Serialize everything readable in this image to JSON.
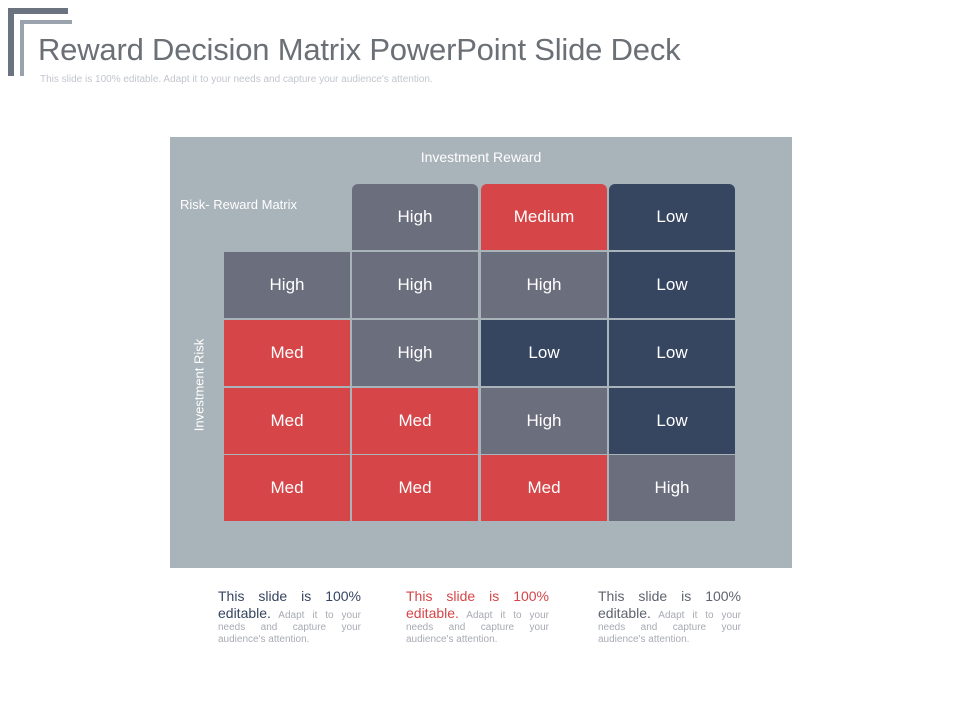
{
  "header": {
    "title": "Reward Decision Matrix PowerPoint Slide Deck",
    "subtitle": "This slide is 100% editable. Adapt it to your needs and capture your audience's attention."
  },
  "matrix": {
    "reward_label": "Investment  Reward",
    "matrix_label": "Risk- Reward Matrix",
    "risk_label": "Investment  Risk",
    "column_headers": [
      "High",
      "Medium",
      "Low"
    ],
    "rows": [
      {
        "header": "High",
        "cells": [
          "High",
          "High",
          "Low"
        ]
      },
      {
        "header": "Med",
        "cells": [
          "High",
          "Low",
          "Low"
        ]
      },
      {
        "header": "Med",
        "cells": [
          "Med",
          "High",
          "Low"
        ]
      },
      {
        "header": "Med",
        "cells": [
          "Med",
          "Med",
          "High"
        ]
      }
    ],
    "colors": {
      "high": "#6b6e7d",
      "med": "#d64548",
      "low": "#364560",
      "panel": "#a9b3ba"
    }
  },
  "descriptions": [
    {
      "lead": "This slide is 100% editable.",
      "body": " Adapt it to your needs and capture your audience's attention."
    },
    {
      "lead": "This slide is 100% editable.",
      "body": " Adapt it to your needs and capture your audience's attention."
    },
    {
      "lead": "This slide is 100% editable.",
      "body": " Adapt it to your needs and capture your audience's attention."
    }
  ]
}
